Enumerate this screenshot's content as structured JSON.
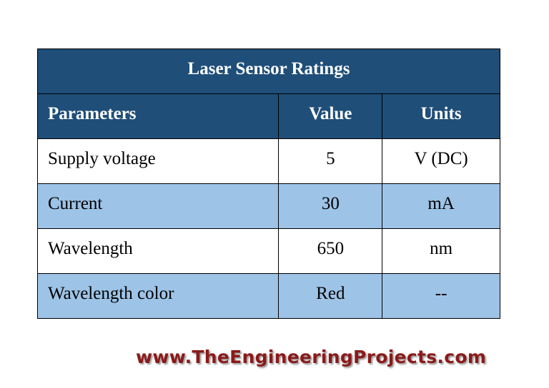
{
  "table": {
    "title": "Laser Sensor Ratings",
    "headers": [
      "Parameters",
      "Value",
      "Units"
    ],
    "rows": [
      [
        "Supply voltage",
        "5",
        "V (DC)"
      ],
      [
        "Current",
        "30",
        "mA"
      ],
      [
        "Wavelength",
        "650",
        "nm"
      ],
      [
        "Wavelength color",
        "Red",
        "--"
      ]
    ]
  },
  "footer": {
    "watermark": "www.TheEngineeringProjects.com"
  }
}
